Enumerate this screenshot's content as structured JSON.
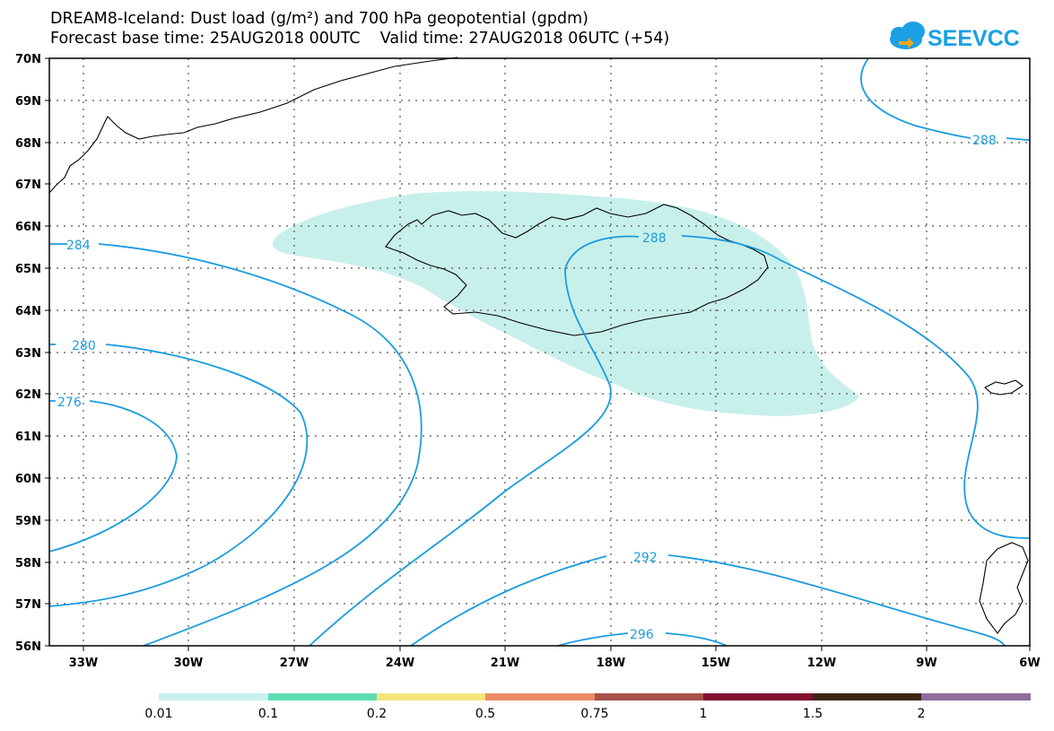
{
  "title": {
    "line1": "DREAM8-Iceland: Dust load (g/m²) and 700 hPa geopotential (gpdm)",
    "line2": "Forecast base time: 25AUG2018 00UTC    Valid time: 27AUG2018 06UTC (+54)"
  },
  "logo": {
    "text": "SEEVCCC"
  },
  "map": {
    "lat_ticks": [
      "70N",
      "69N",
      "68N",
      "67N",
      "66N",
      "65N",
      "64N",
      "63N",
      "62N",
      "61N",
      "60N",
      "59N",
      "58N",
      "57N",
      "56N"
    ],
    "lon_ticks": [
      "33W",
      "30W",
      "27W",
      "24W",
      "21W",
      "18W",
      "15W",
      "12W",
      "9W",
      "6W"
    ],
    "contour_labels": [
      "284",
      "280",
      "276",
      "288",
      "288",
      "292",
      "296"
    ],
    "contour_color": "#1a9ce0",
    "dust_color": "#c8f0ea"
  },
  "colorbar": {
    "labels": [
      "0.01",
      "0.1",
      "0.2",
      "0.5",
      "0.75",
      "1",
      "1.5",
      "2"
    ],
    "colors": [
      "#c8f0ea",
      "#5fdcb4",
      "#f5e67a",
      "#ec8c68",
      "#a8524a",
      "#820e30",
      "#3c2810",
      "#906c9e"
    ]
  }
}
